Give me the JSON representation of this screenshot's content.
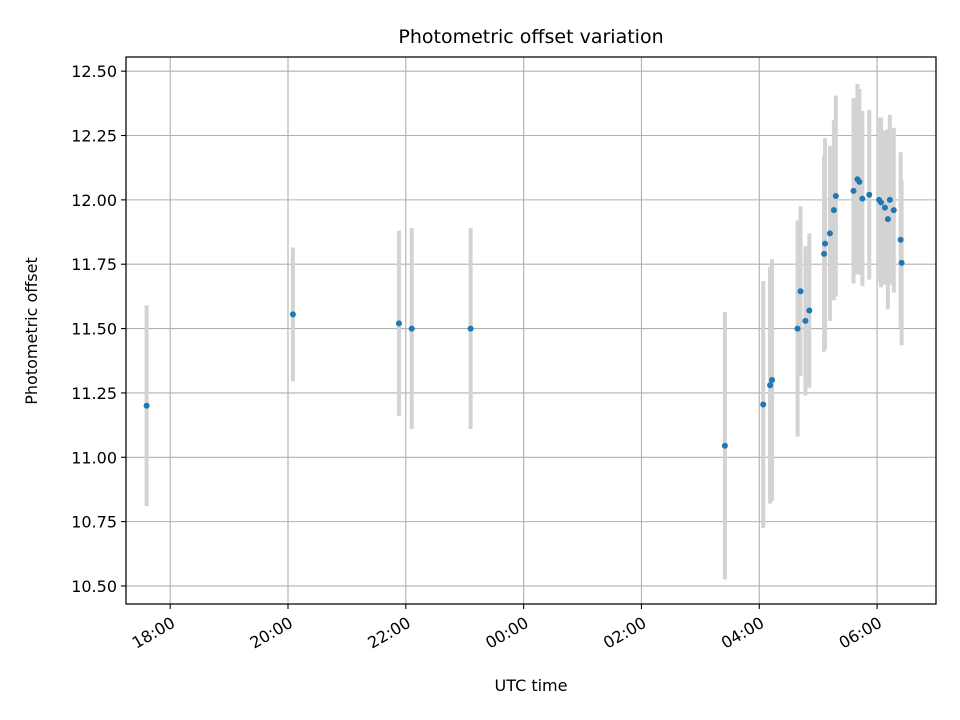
{
  "chart_data": {
    "type": "scatter",
    "title": "Photometric offset variation",
    "xlabel": "UTC time",
    "ylabel": "Photometric offset",
    "x_ticks": [
      "18:00",
      "20:00",
      "22:00",
      "00:00",
      "02:00",
      "04:00",
      "06:00"
    ],
    "y_ticks": [
      "10.50",
      "10.75",
      "11.00",
      "11.25",
      "11.50",
      "11.75",
      "12.00",
      "12.25",
      "12.50"
    ],
    "xlim": [
      "17:15",
      "07:00"
    ],
    "ylim": [
      10.43,
      12.555
    ],
    "grid": true,
    "point_color": "#1f77b4",
    "errorbar_color": "#d3d3d3",
    "points": [
      {
        "t": "17:36",
        "y": 11.2,
        "err": 0.39
      },
      {
        "t": "20:05",
        "y": 11.555,
        "err": 0.26
      },
      {
        "t": "21:53",
        "y": 11.52,
        "err": 0.36
      },
      {
        "t": "22:06",
        "y": 11.5,
        "err": 0.39
      },
      {
        "t": "23:06",
        "y": 11.5,
        "err": 0.39
      },
      {
        "t": "03:25",
        "y": 11.045,
        "err": 0.52
      },
      {
        "t": "04:04",
        "y": 11.205,
        "err": 0.48
      },
      {
        "t": "04:11",
        "y": 11.28,
        "err": 0.46
      },
      {
        "t": "04:13",
        "y": 11.3,
        "err": 0.47
      },
      {
        "t": "04:39",
        "y": 11.5,
        "err": 0.42
      },
      {
        "t": "04:42",
        "y": 11.645,
        "err": 0.33
      },
      {
        "t": "04:47",
        "y": 11.53,
        "err": 0.29
      },
      {
        "t": "04:51",
        "y": 11.57,
        "err": 0.3
      },
      {
        "t": "05:06",
        "y": 11.79,
        "err": 0.38
      },
      {
        "t": "05:07",
        "y": 11.83,
        "err": 0.41
      },
      {
        "t": "05:12",
        "y": 11.87,
        "err": 0.34
      },
      {
        "t": "05:16",
        "y": 11.96,
        "err": 0.35
      },
      {
        "t": "05:18",
        "y": 12.015,
        "err": 0.39
      },
      {
        "t": "05:36",
        "y": 12.035,
        "err": 0.36
      },
      {
        "t": "05:40",
        "y": 12.08,
        "err": 0.37
      },
      {
        "t": "05:42",
        "y": 12.07,
        "err": 0.36
      },
      {
        "t": "05:45",
        "y": 12.005,
        "err": 0.34
      },
      {
        "t": "05:52",
        "y": 12.02,
        "err": 0.33
      },
      {
        "t": "06:02",
        "y": 12.0,
        "err": 0.32
      },
      {
        "t": "06:04",
        "y": 11.99,
        "err": 0.33
      },
      {
        "t": "06:08",
        "y": 11.97,
        "err": 0.3
      },
      {
        "t": "06:11",
        "y": 11.925,
        "err": 0.35
      },
      {
        "t": "06:13",
        "y": 12.0,
        "err": 0.33
      },
      {
        "t": "06:17",
        "y": 11.96,
        "err": 0.32
      },
      {
        "t": "06:24",
        "y": 11.845,
        "err": 0.34
      },
      {
        "t": "06:25",
        "y": 11.755,
        "err": 0.32
      }
    ]
  }
}
